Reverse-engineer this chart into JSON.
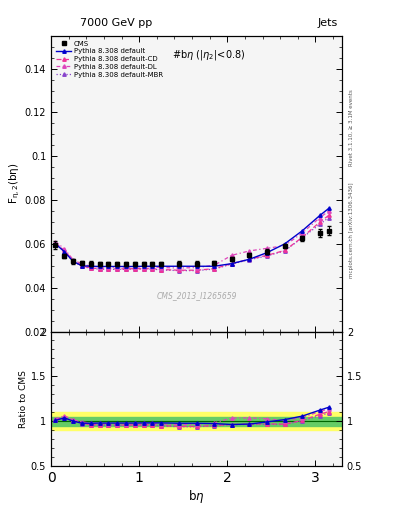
{
  "title_top_left": "7000 GeV pp",
  "title_top_right": "Jets",
  "plot_title": "#bη (|η₂|<0.8)",
  "watermark": "CMS_2013_I1265659",
  "right_label_bottom": "mcplots.cern.ch [arXiv:1306.3436]",
  "right_label_top": "Rivet 3.1.10, ≥ 3.1M events",
  "xlabel": "bη",
  "ylabel_main": "F_{η,2}(bη)",
  "ylabel_ratio": "Ratio to CMS",
  "xlim": [
    0,
    3.3
  ],
  "ylim_main": [
    0.02,
    0.155
  ],
  "ylim_ratio": [
    0.5,
    2.0
  ],
  "yticks_main": [
    0.02,
    0.04,
    0.06,
    0.08,
    0.1,
    0.12,
    0.14
  ],
  "yticks_ratio": [
    0.5,
    1.0,
    1.5,
    2.0
  ],
  "cms_x": [
    0.05,
    0.15,
    0.25,
    0.35,
    0.45,
    0.55,
    0.65,
    0.75,
    0.85,
    0.95,
    1.05,
    1.15,
    1.25,
    1.45,
    1.65,
    1.85,
    2.05,
    2.25,
    2.45,
    2.65,
    2.85,
    3.05,
    3.15
  ],
  "cms_y": [
    0.0595,
    0.0545,
    0.052,
    0.0512,
    0.051,
    0.0508,
    0.0508,
    0.0508,
    0.0508,
    0.0508,
    0.0508,
    0.0508,
    0.0508,
    0.051,
    0.051,
    0.0512,
    0.053,
    0.0548,
    0.0565,
    0.059,
    0.0625,
    0.065,
    0.066
  ],
  "cms_yerr": [
    0.002,
    0.001,
    0.001,
    0.001,
    0.001,
    0.001,
    0.001,
    0.001,
    0.001,
    0.001,
    0.001,
    0.001,
    0.001,
    0.001,
    0.001,
    0.001,
    0.001,
    0.001,
    0.001,
    0.001,
    0.001,
    0.002,
    0.002
  ],
  "py_default_x": [
    0.05,
    0.15,
    0.25,
    0.35,
    0.45,
    0.55,
    0.65,
    0.75,
    0.85,
    0.95,
    1.05,
    1.15,
    1.25,
    1.45,
    1.65,
    1.85,
    2.05,
    2.25,
    2.45,
    2.65,
    2.85,
    3.05,
    3.15
  ],
  "py_default_y": [
    0.06,
    0.0565,
    0.052,
    0.05,
    0.0498,
    0.0497,
    0.0497,
    0.0497,
    0.0497,
    0.0497,
    0.0498,
    0.0498,
    0.0498,
    0.0498,
    0.0498,
    0.0498,
    0.051,
    0.053,
    0.056,
    0.06,
    0.066,
    0.073,
    0.0762
  ],
  "py_cd_x": [
    0.05,
    0.15,
    0.25,
    0.35,
    0.45,
    0.55,
    0.65,
    0.75,
    0.85,
    0.95,
    1.05,
    1.15,
    1.25,
    1.45,
    1.65,
    1.85,
    2.05,
    2.25,
    2.45,
    2.65,
    2.85,
    3.05,
    3.15
  ],
  "py_cd_y": [
    0.0605,
    0.057,
    0.0524,
    0.05,
    0.049,
    0.0487,
    0.0486,
    0.0486,
    0.0486,
    0.0487,
    0.0487,
    0.0487,
    0.0483,
    0.048,
    0.048,
    0.0487,
    0.051,
    0.053,
    0.0548,
    0.057,
    0.063,
    0.07,
    0.073
  ],
  "py_dl_x": [
    0.05,
    0.15,
    0.25,
    0.35,
    0.45,
    0.55,
    0.65,
    0.75,
    0.85,
    0.95,
    1.05,
    1.15,
    1.25,
    1.45,
    1.65,
    1.85,
    2.05,
    2.25,
    2.45,
    2.65,
    2.85,
    3.05,
    3.15
  ],
  "py_dl_y": [
    0.061,
    0.0578,
    0.0528,
    0.0508,
    0.0498,
    0.0495,
    0.0494,
    0.0494,
    0.0494,
    0.0495,
    0.0496,
    0.0496,
    0.0492,
    0.049,
    0.0492,
    0.0502,
    0.0548,
    0.0568,
    0.058,
    0.0592,
    0.065,
    0.072,
    0.075
  ],
  "py_mbr_x": [
    0.05,
    0.15,
    0.25,
    0.35,
    0.45,
    0.55,
    0.65,
    0.75,
    0.85,
    0.95,
    1.05,
    1.15,
    1.25,
    1.45,
    1.65,
    1.85,
    2.05,
    2.25,
    2.45,
    2.65,
    2.85,
    3.05,
    3.15
  ],
  "py_mbr_y": [
    0.06,
    0.0565,
    0.052,
    0.0498,
    0.0488,
    0.0485,
    0.0484,
    0.0484,
    0.0484,
    0.0485,
    0.0485,
    0.0485,
    0.0481,
    0.0478,
    0.0478,
    0.0485,
    0.0508,
    0.0528,
    0.0545,
    0.0568,
    0.0628,
    0.069,
    0.072
  ],
  "color_default": "#0000cc",
  "color_cd": "#ee3399",
  "color_dl": "#dd44bb",
  "color_mbr": "#8844cc",
  "ratio_band_green_half": 0.05,
  "ratio_band_yellow_half": 0.1,
  "bg_color": "#f5f5f5"
}
